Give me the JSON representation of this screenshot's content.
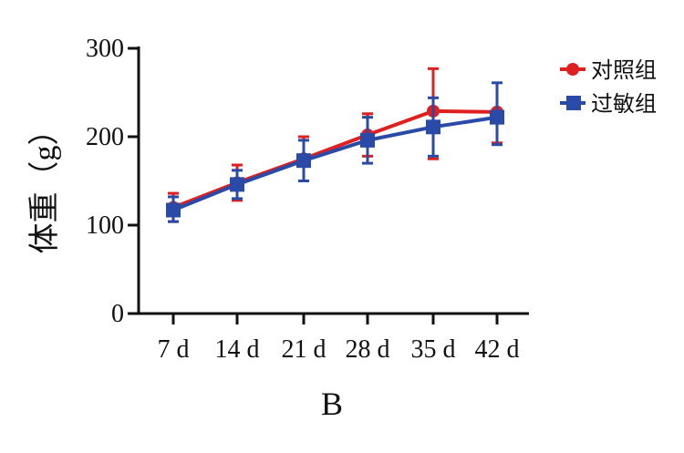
{
  "chart_data": {
    "type": "line",
    "title": "",
    "panel_label": "B",
    "xlabel": "",
    "ylabel": "体重（g）",
    "categories": [
      "7 d",
      "14 d",
      "21 d",
      "28 d",
      "35 d",
      "42 d"
    ],
    "ylim": [
      0,
      300
    ],
    "yticks": [
      "0",
      "100",
      "200",
      "300"
    ],
    "grid": false,
    "legend_position": "top-right",
    "series": [
      {
        "name": "对照组",
        "color": "#e02020",
        "marker": "circle",
        "values": [
          120,
          148,
          175,
          202,
          229,
          228
        ],
        "error_upper": [
          136,
          168,
          200,
          226,
          277,
          228
        ],
        "error_lower": [
          104,
          128,
          150,
          178,
          175,
          193
        ]
      },
      {
        "name": "过敏组",
        "color": "#2a4aa8",
        "marker": "square",
        "values": [
          117,
          146,
          173,
          196,
          211,
          222
        ],
        "error_upper": [
          132,
          162,
          196,
          222,
          244,
          261
        ],
        "error_lower": [
          104,
          130,
          150,
          170,
          178,
          191
        ]
      }
    ]
  }
}
